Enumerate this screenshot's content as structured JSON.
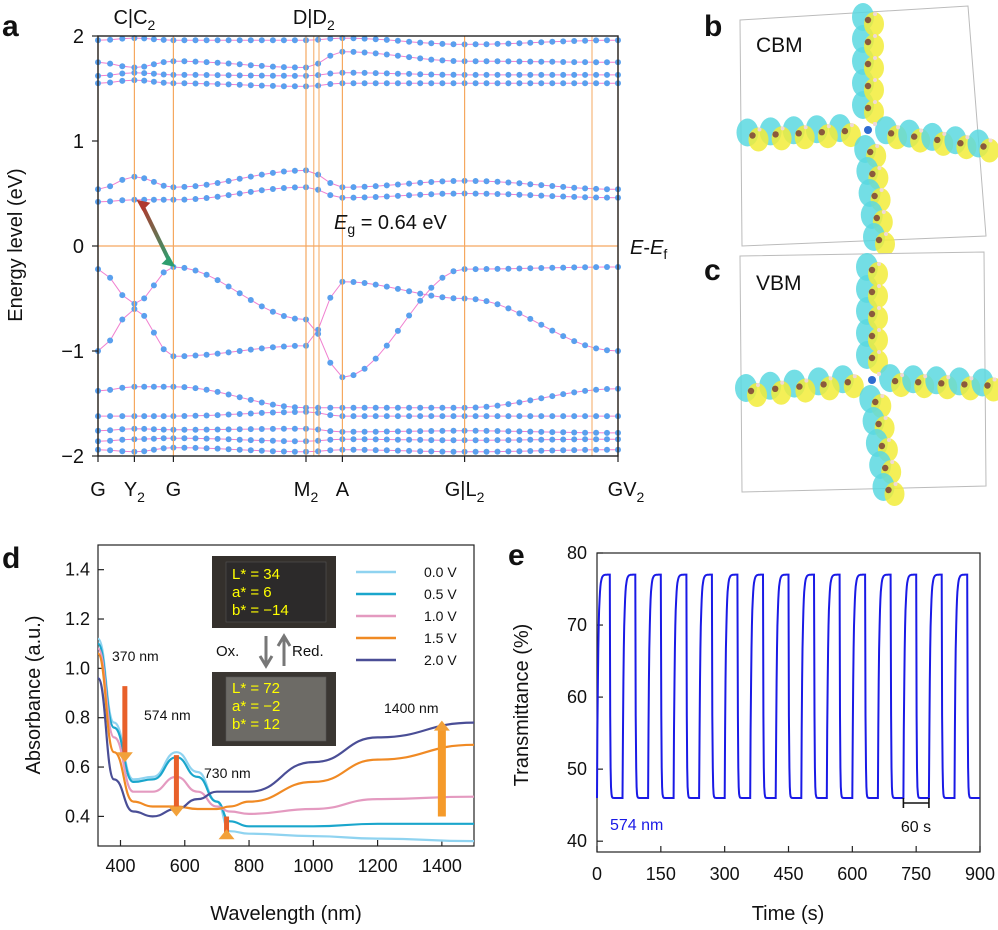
{
  "panels": {
    "a": "a",
    "b": "b",
    "c": "c",
    "d": "d",
    "e": "e"
  },
  "chart_data": [
    {
      "panel": "a",
      "type": "line",
      "title": "",
      "xlabel": "",
      "ylabel": "Energy level (eV)",
      "ylim": [
        -2,
        2
      ],
      "yticks": [
        "2",
        "1",
        "0",
        "−1",
        "−2"
      ],
      "ytick_values": [
        2,
        1,
        0,
        -1,
        -2
      ],
      "kpoints": [
        {
          "label": "G",
          "x": 0.0
        },
        {
          "label": "Y",
          "sub": "2",
          "x": 0.07
        },
        {
          "label": "G",
          "x": 0.145
        },
        {
          "label": "M",
          "sub": "2",
          "x": 0.4
        },
        {
          "label": "A",
          "x": 0.47
        },
        {
          "label": "G|L",
          "sub": "2",
          "x": 0.705
        },
        {
          "label": "GV",
          "sub": "2",
          "x": 1.0
        }
      ],
      "top_labels": [
        {
          "label": "C|C",
          "sub": "2",
          "x": 0.07
        },
        {
          "label": "D|D",
          "sub": "2",
          "x": 0.415
        }
      ],
      "extra_vlines": [
        0.415,
        0.425,
        0.95
      ],
      "fermi_label_main": "E",
      "fermi_label_minus": "-",
      "fermi_label_e2": "E",
      "fermi_label_sub": "f",
      "gap_label_e": "E",
      "gap_label_sub": "g",
      "gap_label_value": " = 0.64 eV",
      "gap_value": 0.64,
      "series": [
        {
          "name": "band1",
          "values": [
            [
              0,
              -1.94
            ],
            [
              0.07,
              -1.96
            ],
            [
              0.145,
              -1.92
            ],
            [
              0.4,
              -1.96
            ],
            [
              0.47,
              -1.94
            ],
            [
              0.705,
              -1.96
            ],
            [
              1.0,
              -1.94
            ]
          ]
        },
        {
          "name": "band2",
          "values": [
            [
              0,
              -1.86
            ],
            [
              0.07,
              -1.84
            ],
            [
              0.145,
              -1.83
            ],
            [
              0.4,
              -1.86
            ],
            [
              0.47,
              -1.84
            ],
            [
              0.705,
              -1.85
            ],
            [
              1.0,
              -1.84
            ]
          ]
        },
        {
          "name": "band3",
          "values": [
            [
              0,
              -1.76
            ],
            [
              0.07,
              -1.74
            ],
            [
              0.145,
              -1.75
            ],
            [
              0.4,
              -1.74
            ],
            [
              0.47,
              -1.77
            ],
            [
              0.705,
              -1.76
            ],
            [
              1.0,
              -1.78
            ]
          ]
        },
        {
          "name": "band4",
          "values": [
            [
              0,
              -1.62
            ],
            [
              0.07,
              -1.62
            ],
            [
              0.145,
              -1.62
            ],
            [
              0.4,
              -1.58
            ],
            [
              0.47,
              -1.62
            ],
            [
              0.705,
              -1.62
            ],
            [
              1.0,
              -1.62
            ]
          ]
        },
        {
          "name": "band5",
          "values": [
            [
              0,
              -1.38
            ],
            [
              0.07,
              -1.34
            ],
            [
              0.145,
              -1.34
            ],
            [
              0.4,
              -1.54
            ],
            [
              0.47,
              -1.54
            ],
            [
              0.705,
              -1.54
            ],
            [
              1.0,
              -1.36
            ]
          ]
        },
        {
          "name": "VB1",
          "values": [
            [
              0,
              -1.0
            ],
            [
              0.07,
              -0.6
            ],
            [
              0.145,
              -1.05
            ],
            [
              0.4,
              -0.95
            ],
            [
              0.47,
              -0.34
            ],
            [
              0.705,
              -0.5
            ],
            [
              1.0,
              -1.0
            ]
          ]
        },
        {
          "name": "VB2",
          "values": [
            [
              0,
              -0.22
            ],
            [
              0.07,
              -0.55
            ],
            [
              0.145,
              -0.2
            ],
            [
              0.4,
              -0.7
            ],
            [
              0.47,
              -1.25
            ],
            [
              0.705,
              -0.22
            ],
            [
              1.0,
              -0.2
            ]
          ]
        },
        {
          "name": "CB1",
          "values": [
            [
              0,
              0.42
            ],
            [
              0.07,
              0.44
            ],
            [
              0.145,
              0.44
            ],
            [
              0.4,
              0.56
            ],
            [
              0.47,
              0.46
            ],
            [
              0.705,
              0.5
            ],
            [
              1.0,
              0.46
            ]
          ]
        },
        {
          "name": "CB2",
          "values": [
            [
              0,
              0.54
            ],
            [
              0.07,
              0.66
            ],
            [
              0.145,
              0.56
            ],
            [
              0.4,
              0.72
            ],
            [
              0.47,
              0.56
            ],
            [
              0.705,
              0.62
            ],
            [
              1.0,
              0.54
            ]
          ]
        },
        {
          "name": "CB3",
          "values": [
            [
              0,
              1.55
            ],
            [
              0.07,
              1.58
            ],
            [
              0.145,
              1.55
            ],
            [
              0.4,
              1.52
            ],
            [
              0.47,
              1.55
            ],
            [
              0.705,
              1.55
            ],
            [
              1.0,
              1.55
            ]
          ]
        },
        {
          "name": "CB4",
          "values": [
            [
              0,
              1.62
            ],
            [
              0.07,
              1.65
            ],
            [
              0.145,
              1.63
            ],
            [
              0.4,
              1.62
            ],
            [
              0.47,
              1.65
            ],
            [
              0.705,
              1.63
            ],
            [
              1.0,
              1.63
            ]
          ]
        },
        {
          "name": "CB5",
          "values": [
            [
              0,
              1.75
            ],
            [
              0.07,
              1.7
            ],
            [
              0.145,
              1.76
            ],
            [
              0.4,
              1.7
            ],
            [
              0.47,
              1.85
            ],
            [
              0.705,
              1.76
            ],
            [
              1.0,
              1.75
            ]
          ]
        },
        {
          "name": "CB6",
          "values": [
            [
              0,
              1.96
            ],
            [
              0.07,
              1.98
            ],
            [
              0.145,
              1.96
            ],
            [
              0.4,
              1.96
            ],
            [
              0.47,
              1.98
            ],
            [
              0.705,
              1.92
            ],
            [
              1.0,
              1.96
            ]
          ]
        }
      ],
      "colors": {
        "point": "#5aa0ee",
        "line": "#f080d0",
        "grid": "#f5a860",
        "axis": "#222222",
        "arrow_top": "#b03a2e",
        "arrow_bottom": "#2e9e6e"
      }
    },
    {
      "panel": "d",
      "type": "line",
      "title": "",
      "xlabel": "Wavelength (nm)",
      "ylabel": "Absorbance (a.u.)",
      "xlim": [
        330,
        1500
      ],
      "ylim": [
        0.28,
        1.5
      ],
      "xticks": [
        400,
        600,
        800,
        1000,
        1200,
        1400
      ],
      "yticks": [
        0.4,
        0.6,
        0.8,
        1.0,
        1.2,
        1.4
      ],
      "xtick_labels": [
        "400",
        "600",
        "800",
        "1000",
        "1200",
        "1400"
      ],
      "ytick_labels": [
        "0.4",
        "0.6",
        "0.8",
        "1.0",
        "1.2",
        "1.4"
      ],
      "legend_position": "top-right",
      "series": [
        {
          "name": "0.0 V",
          "color": "#8fd3f0",
          "x": [
            330,
            380,
            440,
            500,
            574,
            640,
            700,
            740,
            800,
            1000,
            1200,
            1500
          ],
          "values": [
            1.12,
            0.78,
            0.55,
            0.56,
            0.66,
            0.58,
            0.46,
            0.34,
            0.33,
            0.32,
            0.31,
            0.3
          ]
        },
        {
          "name": "0.5 V",
          "color": "#1aa6cc",
          "x": [
            330,
            380,
            440,
            500,
            574,
            640,
            700,
            740,
            800,
            1000,
            1200,
            1500
          ],
          "values": [
            1.1,
            0.76,
            0.54,
            0.55,
            0.64,
            0.56,
            0.46,
            0.38,
            0.36,
            0.36,
            0.37,
            0.37
          ]
        },
        {
          "name": "1.0 V",
          "color": "#e49ac0",
          "x": [
            330,
            380,
            440,
            500,
            574,
            640,
            700,
            740,
            800,
            1000,
            1200,
            1500
          ],
          "values": [
            1.08,
            0.72,
            0.5,
            0.5,
            0.56,
            0.5,
            0.44,
            0.42,
            0.41,
            0.43,
            0.47,
            0.48
          ]
        },
        {
          "name": "1.5 V",
          "color": "#f08a24",
          "x": [
            330,
            380,
            440,
            500,
            574,
            640,
            700,
            740,
            800,
            1000,
            1200,
            1500
          ],
          "values": [
            1.06,
            0.66,
            0.46,
            0.44,
            0.44,
            0.43,
            0.43,
            0.44,
            0.46,
            0.54,
            0.63,
            0.69
          ]
        },
        {
          "name": "2.0 V",
          "color": "#4a4e96",
          "x": [
            330,
            380,
            440,
            500,
            574,
            640,
            700,
            740,
            800,
            1000,
            1200,
            1500
          ],
          "values": [
            0.96,
            0.55,
            0.42,
            0.4,
            0.43,
            0.47,
            0.5,
            0.5,
            0.5,
            0.62,
            0.72,
            0.78
          ]
        }
      ],
      "annotations": [
        "370 nm",
        "574 nm",
        "730 nm",
        "1400 nm"
      ],
      "inset": {
        "top": [
          "L* = 34",
          "a* = 6",
          "b* = −14"
        ],
        "bottom": [
          "L* = 72",
          "a* = −2",
          "b* = 12"
        ],
        "ox": "Ox.",
        "red": "Red."
      }
    },
    {
      "panel": "e",
      "type": "line",
      "title": "",
      "xlabel": "Time (s)",
      "ylabel": "Transmittance (%)",
      "xlim": [
        0,
        900
      ],
      "ylim": [
        38.5,
        80
      ],
      "xticks": [
        0,
        150,
        300,
        450,
        600,
        750,
        900
      ],
      "yticks": [
        40,
        50,
        60,
        70,
        80
      ],
      "xtick_labels": [
        "0",
        "150",
        "300",
        "450",
        "600",
        "750",
        "900"
      ],
      "ytick_labels": [
        "40",
        "50",
        "60",
        "70",
        "80"
      ],
      "cycle_period_s": 60,
      "cycles": 15,
      "t_max": 77,
      "t_min": 46,
      "color": "#1a1ae6",
      "annotation": "574 nm",
      "scale_bar_label": "60 s",
      "scale_bar_start": 720,
      "scale_bar_end": 780
    }
  ],
  "orbitals": {
    "cbm_label": "CBM",
    "vbm_label": "VBM",
    "colors": {
      "lobe_a": "#5ad8e0",
      "lobe_b": "#f2ec3a",
      "carbon": "#8b5a3c",
      "nitrogen": "#2f6cd0",
      "hydrogen": "#f0d8d8"
    }
  }
}
